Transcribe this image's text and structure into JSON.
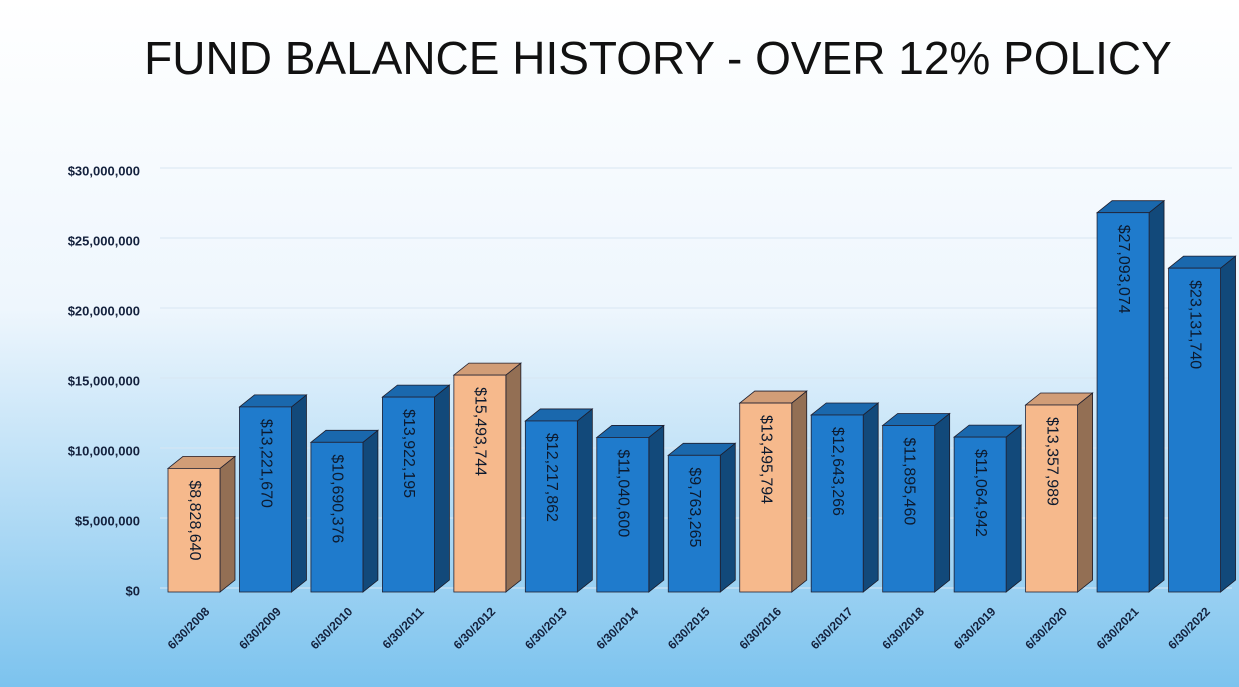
{
  "chart_data": {
    "type": "bar",
    "title": "FUND BALANCE HISTORY - OVER 12% POLICY",
    "categories": [
      "6/30/2008",
      "6/30/2009",
      "6/30/2010",
      "6/30/2011",
      "6/30/2012",
      "6/30/2013",
      "6/30/2014",
      "6/30/2015",
      "6/30/2016",
      "6/30/2017",
      "6/30/2018",
      "6/30/2019",
      "6/30/2020",
      "6/30/2021",
      "6/30/2022"
    ],
    "values": [
      8828640,
      13221670,
      10690376,
      13922195,
      15493744,
      12217862,
      11040600,
      9763265,
      13495794,
      12643266,
      11895460,
      11064942,
      13357989,
      27093074,
      23131740
    ],
    "value_labels": [
      "$8,828,640",
      "$13,221,670",
      "$10,690,376",
      "$13,922,195",
      "$15,493,744",
      "$12,217,862",
      "$11,040,600",
      "$9,763,265",
      "$13,495,794",
      "$12,643,266",
      "$11,895,460",
      "$11,064,942",
      "$13,357,989",
      "$27,093,074",
      "$23,131,740"
    ],
    "colors": [
      "#f6b98c",
      "#1f7bcc",
      "#1f7bcc",
      "#1f7bcc",
      "#f6b98c",
      "#1f7bcc",
      "#1f7bcc",
      "#1f7bcc",
      "#f6b98c",
      "#1f7bcc",
      "#1f7bcc",
      "#1f7bcc",
      "#f6b98c",
      "#1f7bcc",
      "#1f7bcc"
    ],
    "ylim": [
      0,
      30000000
    ],
    "yticks": [
      {
        "value": 0,
        "label": "$0"
      },
      {
        "value": 5000000,
        "label": "$5,000,000"
      },
      {
        "value": 10000000,
        "label": "$10,000,000"
      },
      {
        "value": 15000000,
        "label": "$15,000,000"
      },
      {
        "value": 20000000,
        "label": "$20,000,000"
      },
      {
        "value": 25000000,
        "label": "$25,000,000"
      },
      {
        "value": 30000000,
        "label": "$30,000,000"
      }
    ],
    "grid": true
  }
}
